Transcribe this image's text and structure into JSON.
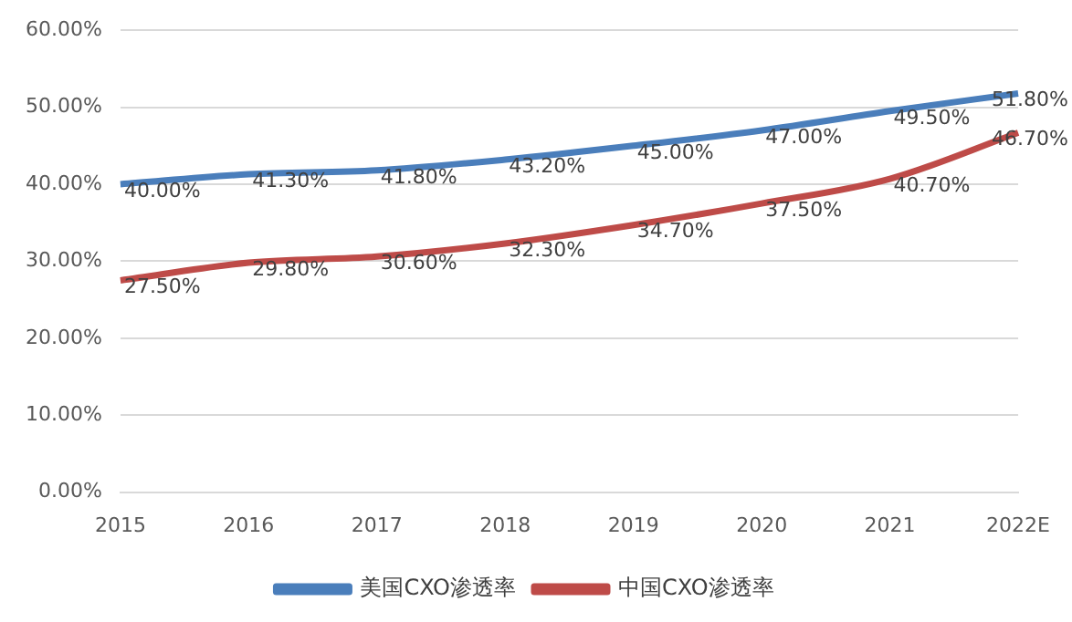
{
  "chart_data": {
    "type": "line",
    "categories": [
      "2015",
      "2016",
      "2017",
      "2018",
      "2019",
      "2020",
      "2021",
      "2022E"
    ],
    "series": [
      {
        "name": "美国CXO渗透率",
        "color": "#4a7ebb",
        "values": [
          40.0,
          41.3,
          41.8,
          43.2,
          45.0,
          47.0,
          49.5,
          51.8
        ],
        "value_labels": [
          "40.00%",
          "41.30%",
          "41.80%",
          "43.20%",
          "45.00%",
          "47.00%",
          "49.50%",
          "51.80%"
        ]
      },
      {
        "name": "中国CXO渗透率",
        "color": "#be4b48",
        "values": [
          27.5,
          29.8,
          30.6,
          32.3,
          34.7,
          37.5,
          40.7,
          46.7
        ],
        "value_labels": [
          "27.50%",
          "29.80%",
          "30.60%",
          "32.30%",
          "34.70%",
          "37.50%",
          "40.70%",
          "46.70%"
        ]
      }
    ],
    "ylim": [
      0,
      60
    ],
    "yticks": [
      {
        "value": 0,
        "label": "0.00%"
      },
      {
        "value": 10,
        "label": "10.00%"
      },
      {
        "value": 20,
        "label": "20.00%"
      },
      {
        "value": 30,
        "label": "30.00%"
      },
      {
        "value": 40,
        "label": "40.00%"
      },
      {
        "value": 50,
        "label": "50.00%"
      },
      {
        "value": 60,
        "label": "60.00%"
      }
    ],
    "grid": "y",
    "legend": "bottom",
    "marker": "none",
    "line_style": "solid"
  }
}
